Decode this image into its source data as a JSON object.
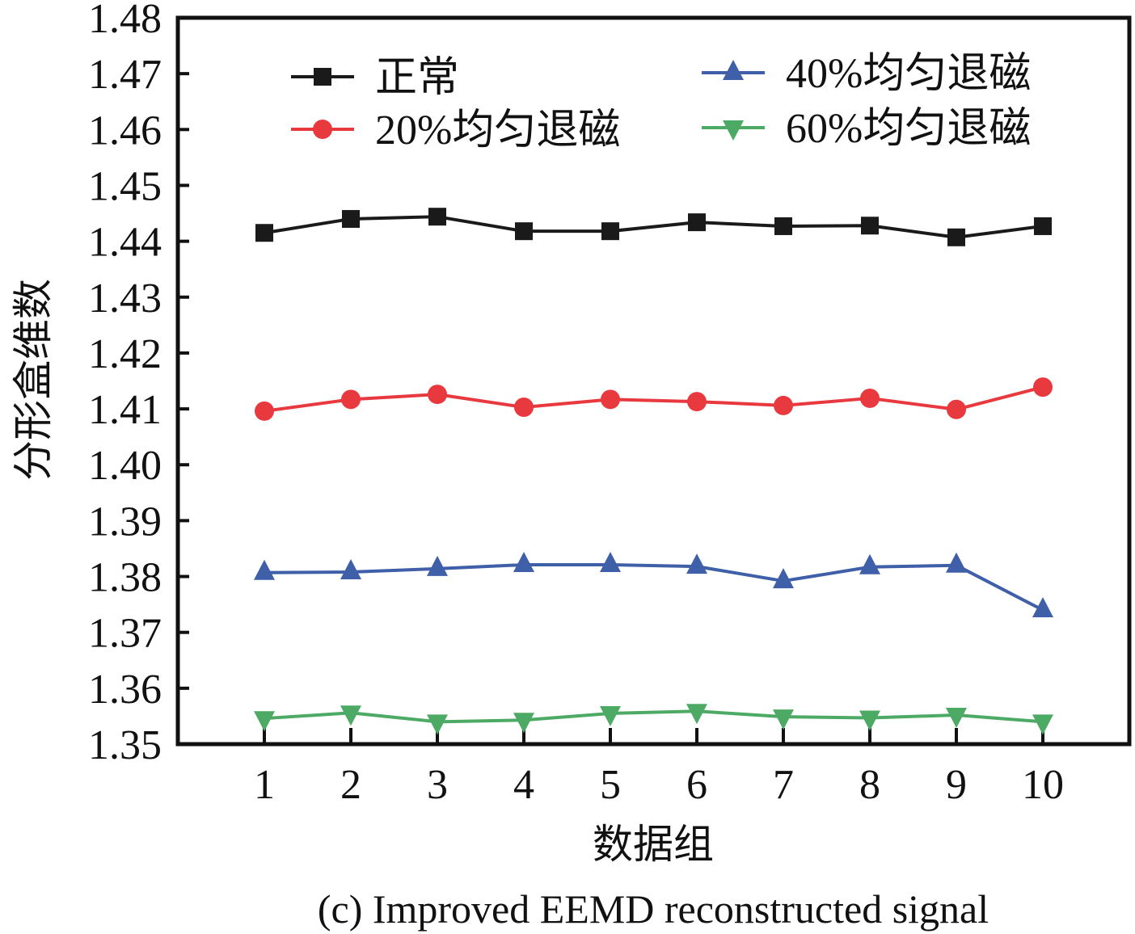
{
  "chart_data": {
    "type": "line",
    "title": "",
    "caption": "(c) Improved EEMD reconstructed signal",
    "xlabel": "数据组",
    "ylabel": "分形盒维数",
    "x": [
      1,
      2,
      3,
      4,
      5,
      6,
      7,
      8,
      9,
      10
    ],
    "x_tick_labels": [
      "1",
      "2",
      "3",
      "4",
      "5",
      "6",
      "7",
      "8",
      "9",
      "10"
    ],
    "xlim": [
      0,
      11
    ],
    "ylim": [
      1.35,
      1.48
    ],
    "y_ticks": [
      1.35,
      1.36,
      1.37,
      1.38,
      1.39,
      1.4,
      1.41,
      1.42,
      1.43,
      1.44,
      1.45,
      1.46,
      1.47,
      1.48
    ],
    "y_tick_labels": [
      "1.35",
      "1.36",
      "1.37",
      "1.38",
      "1.39",
      "1.40",
      "1.41",
      "1.42",
      "1.43",
      "1.44",
      "1.45",
      "1.46",
      "1.47",
      "1.48"
    ],
    "grid": false,
    "legend_position": "top",
    "legend_columns": 2,
    "series": [
      {
        "name": "正常",
        "color": "#1a1a1a",
        "marker": "square",
        "values": [
          1.4415,
          1.444,
          1.4444,
          1.4418,
          1.4418,
          1.4434,
          1.4427,
          1.4428,
          1.4407,
          1.4427
        ]
      },
      {
        "name": "20%均匀退磁",
        "color": "#e8393f",
        "marker": "circle",
        "values": [
          1.4096,
          1.4117,
          1.4126,
          1.4103,
          1.4117,
          1.4113,
          1.4106,
          1.4119,
          1.4099,
          1.4139
        ]
      },
      {
        "name": "40%均匀退磁",
        "color": "#3f5fa8",
        "marker": "triangle-up",
        "values": [
          1.3807,
          1.3808,
          1.3814,
          1.3821,
          1.3821,
          1.3818,
          1.3792,
          1.3817,
          1.382,
          1.374
        ]
      },
      {
        "name": "60%均匀退磁",
        "color": "#4caa64",
        "marker": "triangle-down",
        "values": [
          1.3546,
          1.3556,
          1.354,
          1.3543,
          1.3555,
          1.3559,
          1.3549,
          1.3547,
          1.3552,
          1.354
        ]
      }
    ]
  }
}
